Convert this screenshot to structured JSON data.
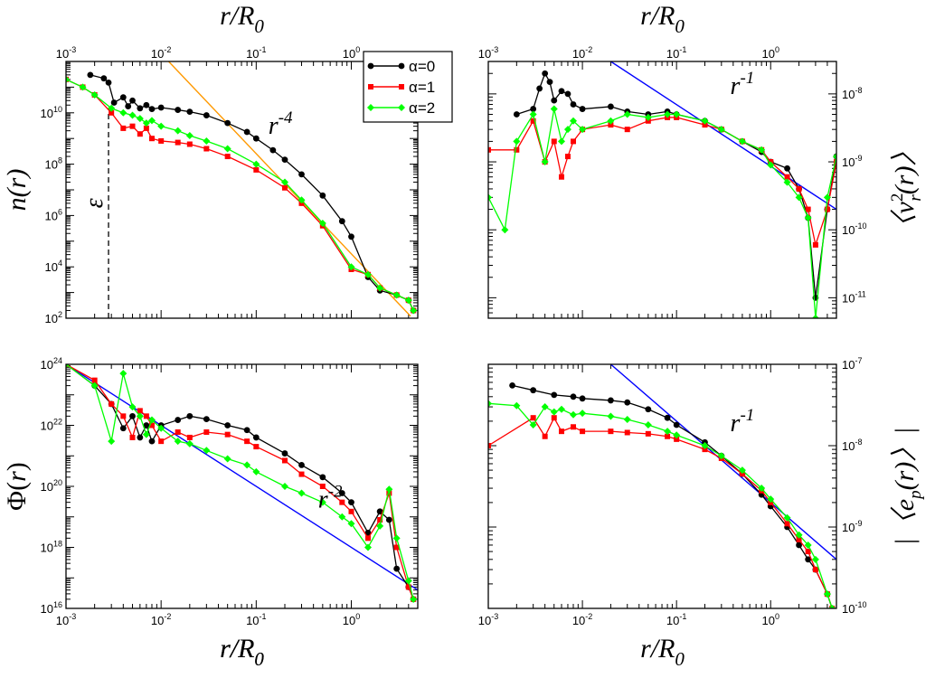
{
  "chart_data": [
    {
      "type": "line",
      "panel": "top-left",
      "xlabel": "r/R0",
      "xlabel_top": "r/R0",
      "ylabel": "n(r)",
      "xscale": "log",
      "yscale": "log",
      "xlim": [
        0.001,
        5
      ],
      "ylim": [
        100,
        1000000000000.0
      ],
      "x_ticks": [
        "10^-3",
        "10^-2",
        "10^-1",
        "10^0"
      ],
      "y_ticks": [
        "10^2",
        "10^4",
        "10^6",
        "10^8",
        "10^10"
      ],
      "legend": {
        "placement": "top-right",
        "entries": [
          "α=0",
          "α=1",
          "α=2"
        ]
      },
      "annotations": [
        {
          "text": "r^-4",
          "x": 0.18,
          "y": 1500000000.0
        },
        {
          "text": "ε",
          "x": 0.0024,
          "y": 3000000.0
        }
      ],
      "reference_lines": [
        {
          "label": "r^-4",
          "color": "#ff9900",
          "points": [
            [
              0.012,
              1000000000000.0
            ],
            [
              4.2,
              120.0
            ]
          ]
        },
        {
          "label": "ε",
          "color": "#000000",
          "dashed": true,
          "points": [
            [
              0.0028,
              100.0
            ],
            [
              0.0028,
              15000000000.0
            ]
          ]
        }
      ],
      "series": [
        {
          "name": "α=0",
          "color": "#000000",
          "marker": "circle",
          "x": [
            0.0018,
            0.0025,
            0.0028,
            0.0032,
            0.004,
            0.0045,
            0.005,
            0.006,
            0.007,
            0.008,
            0.01,
            0.015,
            0.02,
            0.03,
            0.05,
            0.08,
            0.1,
            0.15,
            0.2,
            0.3,
            0.5,
            0.8,
            1.0,
            1.5,
            2.0,
            3.0,
            4.0,
            4.5
          ],
          "y": [
            300000000000.0,
            220000000000.0,
            150000000000.0,
            25000000000.0,
            40000000000.0,
            18000000000.0,
            30000000000.0,
            15000000000.0,
            20000000000.0,
            14000000000.0,
            16000000000.0,
            13000000000.0,
            11000000000.0,
            8000000000.0,
            4000000000.0,
            1800000000.0,
            1000000000.0,
            350000000.0,
            150000000.0,
            40000000.0,
            6000000.0,
            600000.0,
            150000.0,
            4000.0,
            1200.0,
            800.0,
            500.0,
            200.0
          ]
        },
        {
          "name": "α=1",
          "color": "#ff0000",
          "marker": "square",
          "x": [
            0.001,
            0.0015,
            0.002,
            0.003,
            0.004,
            0.005,
            0.006,
            0.007,
            0.008,
            0.01,
            0.015,
            0.02,
            0.03,
            0.05,
            0.1,
            0.2,
            0.3,
            0.5,
            1.0,
            1.5,
            2.0,
            3.0,
            4.0,
            4.5
          ],
          "y": [
            200000000000.0,
            100000000000.0,
            50000000000.0,
            10000000000.0,
            2500000000.0,
            3000000000.0,
            1500000000.0,
            2500000000.0,
            1000000000.0,
            800000000.0,
            700000000.0,
            600000000.0,
            400000000.0,
            200000000.0,
            60000000.0,
            12000000.0,
            3000000.0,
            400000.0,
            8000.0,
            5000.0,
            1500.0,
            800.0,
            500.0,
            200.0
          ]
        },
        {
          "name": "α=2",
          "color": "#00ff00",
          "marker": "diamond",
          "x": [
            0.001,
            0.0015,
            0.002,
            0.003,
            0.004,
            0.005,
            0.006,
            0.007,
            0.008,
            0.01,
            0.015,
            0.02,
            0.03,
            0.05,
            0.1,
            0.2,
            0.3,
            0.5,
            1.0,
            1.5,
            2.0,
            3.0,
            4.0,
            4.5
          ],
          "y": [
            200000000000.0,
            100000000000.0,
            50000000000.0,
            15000000000.0,
            10000000000.0,
            8000000000.0,
            6000000000.0,
            4000000000.0,
            5000000000.0,
            3000000000.0,
            2000000000.0,
            1300000000.0,
            800000000.0,
            400000000.0,
            100000000.0,
            20000000.0,
            4000000.0,
            500000.0,
            10000.0,
            5000.0,
            1500.0,
            800.0,
            500.0,
            200.0
          ]
        }
      ]
    },
    {
      "type": "line",
      "panel": "top-right",
      "xlabel_top": "r/R0",
      "ylabel": "<v_r^2(r)>",
      "xscale": "log",
      "yscale": "log",
      "xlim": [
        0.001,
        5
      ],
      "ylim": [
        5e-12,
        3e-08
      ],
      "x_ticks": [
        "10^-3",
        "10^-2",
        "10^-1",
        "10^0"
      ],
      "y_ticks": [
        "10^-11",
        "10^-10",
        "10^-9",
        "10^-8"
      ],
      "annotations": [
        {
          "text": "r^-1",
          "x": 0.5,
          "y": 1e-08
        }
      ],
      "reference_lines": [
        {
          "label": "r^-1",
          "color": "#0000ff",
          "points": [
            [
              0.02,
              3e-08
            ],
            [
              5,
              2e-10
            ]
          ]
        }
      ],
      "series": [
        {
          "name": "α=0",
          "color": "#000000",
          "marker": "circle",
          "x": [
            0.002,
            0.003,
            0.0035,
            0.004,
            0.0045,
            0.005,
            0.006,
            0.007,
            0.008,
            0.01,
            0.02,
            0.03,
            0.05,
            0.08,
            0.1,
            0.2,
            0.3,
            0.5,
            0.8,
            1.0,
            1.5,
            2.0,
            2.5,
            3.0,
            4.0,
            5.0
          ],
          "y": [
            5e-09,
            6e-09,
            1.2e-08,
            2e-08,
            1.5e-08,
            8e-09,
            1.1e-08,
            1e-08,
            7e-09,
            6e-09,
            6.5e-09,
            5.5e-09,
            5e-09,
            5.5e-09,
            5e-09,
            4e-09,
            3e-09,
            2e-09,
            1.4e-09,
            1e-09,
            8e-10,
            4e-10,
            1.5e-10,
            1e-11,
            2e-10,
            1.2e-09
          ]
        },
        {
          "name": "α=1",
          "color": "#ff0000",
          "marker": "square",
          "x": [
            0.001,
            0.002,
            0.003,
            0.004,
            0.005,
            0.006,
            0.007,
            0.008,
            0.01,
            0.02,
            0.03,
            0.05,
            0.08,
            0.1,
            0.2,
            0.3,
            0.5,
            0.8,
            1.0,
            1.5,
            2.0,
            2.5,
            3.0,
            4.0,
            5.0
          ],
          "y": [
            1.5e-09,
            1.5e-09,
            4e-09,
            1e-09,
            2e-09,
            6e-10,
            1.2e-09,
            2e-09,
            3e-09,
            3.5e-09,
            3e-09,
            4e-09,
            4.5e-09,
            4.5e-09,
            3.5e-09,
            3e-09,
            2e-09,
            1.5e-09,
            1e-09,
            6e-10,
            4e-10,
            2e-10,
            6e-11,
            2e-10,
            1e-09
          ]
        },
        {
          "name": "α=2",
          "color": "#00ff00",
          "marker": "diamond",
          "x": [
            0.001,
            0.0015,
            0.002,
            0.003,
            0.004,
            0.005,
            0.006,
            0.007,
            0.008,
            0.01,
            0.02,
            0.03,
            0.05,
            0.08,
            0.1,
            0.2,
            0.3,
            0.5,
            0.8,
            1.0,
            1.5,
            2.0,
            2.5,
            3.0,
            4.0,
            5.0
          ],
          "y": [
            3e-10,
            1e-10,
            2e-09,
            5e-09,
            1e-09,
            6e-09,
            2e-09,
            3e-09,
            4e-09,
            3e-09,
            4e-09,
            5e-09,
            4.5e-09,
            5e-09,
            5e-09,
            4e-09,
            3e-09,
            2e-09,
            1.5e-09,
            9e-10,
            5e-10,
            3e-10,
            1.5e-10,
            5e-12,
            3e-10,
            1.2e-09
          ]
        }
      ]
    },
    {
      "type": "line",
      "panel": "bottom-left",
      "xlabel": "r/R0",
      "ylabel": "Φ(r)",
      "xscale": "log",
      "yscale": "log",
      "xlim": [
        0.001,
        5
      ],
      "ylim": [
        1e+16,
        1e+24
      ],
      "x_ticks": [
        "10^-3",
        "10^-2",
        "10^-1",
        "10^0"
      ],
      "y_ticks": [
        "10^16",
        "10^18",
        "10^20",
        "10^22",
        "10^24"
      ],
      "annotations": [
        {
          "text": "r^-2",
          "x": 0.6,
          "y": 2e+19
        }
      ],
      "reference_lines": [
        {
          "label": "r^-2",
          "color": "#0000ff",
          "points": [
            [
              0.001,
              1e+24
            ],
            [
              5,
              4e+16
            ]
          ]
        }
      ],
      "series": [
        {
          "name": "α=0",
          "color": "#000000",
          "marker": "circle",
          "x": [
            0.001,
            0.002,
            0.003,
            0.004,
            0.005,
            0.006,
            0.007,
            0.008,
            0.01,
            0.015,
            0.02,
            0.03,
            0.05,
            0.08,
            0.1,
            0.2,
            0.3,
            0.5,
            0.8,
            1.0,
            1.5,
            2.0,
            2.5,
            3.0,
            4.0,
            4.5
          ],
          "y": [
            1e+24,
            2e+23,
            5e+22,
            8e+21,
            2e+22,
            4e+21,
            1e+22,
            3e+21,
            1e+22,
            1.5e+22,
            2e+22,
            1.6e+22,
            1e+22,
            7e+21,
            4e+21,
            1.2e+21,
            5e+20,
            2e+20,
            6e+19,
            3e+19,
            3e+18,
            1.5e+19,
            8e+18,
            2e+17,
            5e+16,
            2e+16
          ]
        },
        {
          "name": "α=1",
          "color": "#ff0000",
          "marker": "square",
          "x": [
            0.001,
            0.002,
            0.003,
            0.004,
            0.005,
            0.006,
            0.007,
            0.008,
            0.01,
            0.015,
            0.02,
            0.03,
            0.05,
            0.08,
            0.1,
            0.2,
            0.3,
            0.5,
            0.8,
            1.0,
            1.5,
            2.0,
            2.5,
            3.0,
            4.0,
            4.5
          ],
          "y": [
            1e+24,
            3e+23,
            5e+22,
            2e+22,
            4e+21,
            3e+22,
            2e+22,
            1e+22,
            3e+21,
            6e+21,
            4e+21,
            6e+21,
            5e+21,
            3e+21,
            2e+21,
            7e+20,
            2.5e+20,
            1e+20,
            3e+19,
            1.5e+19,
            2e+18,
            8e+18,
            6e+19,
            1e+18,
            5e+16,
            2e+16
          ]
        },
        {
          "name": "α=2",
          "color": "#00ff00",
          "marker": "diamond",
          "x": [
            0.001,
            0.002,
            0.003,
            0.004,
            0.005,
            0.006,
            0.007,
            0.008,
            0.01,
            0.015,
            0.02,
            0.03,
            0.05,
            0.08,
            0.1,
            0.2,
            0.3,
            0.5,
            0.8,
            1.0,
            1.5,
            2.0,
            2.5,
            3.0,
            4.0,
            4.5
          ],
          "y": [
            1e+24,
            2e+23,
            3e+21,
            5e+23,
            4e+22,
            2e+22,
            5e+21,
            1.5e+22,
            8e+21,
            3e+21,
            2.5e+21,
            1.5e+21,
            8e+20,
            5e+20,
            3e+20,
            1e+20,
            6e+19,
            3e+19,
            1e+19,
            6e+18,
            1e+18,
            5e+18,
            8e+19,
            2e+18,
            8e+16,
            2e+16
          ]
        }
      ]
    },
    {
      "type": "line",
      "panel": "bottom-right",
      "xlabel": "r/R0",
      "ylabel": "|<e_p(r)>|",
      "xscale": "log",
      "yscale": "log",
      "xlim": [
        0.001,
        5
      ],
      "ylim": [
        1e-10,
        1e-07
      ],
      "x_ticks": [
        "10^-3",
        "10^-2",
        "10^-1",
        "10^0"
      ],
      "y_ticks": [
        "10^-10",
        "10^-9",
        "10^-8",
        "10^-7"
      ],
      "annotations": [
        {
          "text": "r^-1",
          "x": 0.5,
          "y": 1.5e-08
        }
      ],
      "reference_lines": [
        {
          "label": "r^-1",
          "color": "#0000ff",
          "points": [
            [
              0.02,
              1e-07
            ],
            [
              5,
              4e-10
            ]
          ]
        }
      ],
      "series": [
        {
          "name": "α=0",
          "color": "#000000",
          "marker": "circle",
          "x": [
            0.0018,
            0.003,
            0.005,
            0.008,
            0.01,
            0.02,
            0.03,
            0.05,
            0.08,
            0.1,
            0.2,
            0.3,
            0.5,
            0.8,
            1.0,
            1.5,
            2.0,
            2.5,
            3.0,
            4.0,
            4.5
          ],
          "y": [
            5.5e-08,
            4.8e-08,
            4.2e-08,
            4e-08,
            3.8e-08,
            3.6e-08,
            3.4e-08,
            2.8e-08,
            2.2e-08,
            1.8e-08,
            1.1e-08,
            7.5e-09,
            4.5e-09,
            2.5e-09,
            1.8e-09,
            1e-09,
            6e-10,
            4e-10,
            3e-10,
            1.5e-10,
            1e-10
          ]
        },
        {
          "name": "α=1",
          "color": "#ff0000",
          "marker": "square",
          "x": [
            0.001,
            0.003,
            0.004,
            0.005,
            0.006,
            0.008,
            0.01,
            0.02,
            0.03,
            0.05,
            0.08,
            0.1,
            0.2,
            0.3,
            0.5,
            0.8,
            1.0,
            1.5,
            2.0,
            2.5,
            3.0,
            4.0,
            4.5
          ],
          "y": [
            1e-08,
            2.2e-08,
            1.3e-08,
            2.2e-08,
            1.5e-08,
            1.7e-08,
            1.5e-08,
            1.5e-08,
            1.45e-08,
            1.4e-08,
            1.3e-08,
            1.2e-08,
            9e-09,
            7e-09,
            4.5e-09,
            2.8e-09,
            2e-09,
            1.1e-09,
            7e-10,
            5e-10,
            3e-10,
            1.5e-10,
            1e-10
          ]
        },
        {
          "name": "α=2",
          "color": "#00ff00",
          "marker": "diamond",
          "x": [
            0.001,
            0.002,
            0.003,
            0.004,
            0.005,
            0.006,
            0.008,
            0.01,
            0.02,
            0.03,
            0.05,
            0.08,
            0.1,
            0.2,
            0.3,
            0.5,
            0.8,
            1.0,
            1.5,
            2.0,
            2.5,
            3.0,
            4.0,
            4.5
          ],
          "y": [
            3.3e-08,
            3.1e-08,
            1.8e-08,
            3e-08,
            2.6e-08,
            2.8e-08,
            2.4e-08,
            2.5e-08,
            2.3e-08,
            2.1e-08,
            1.8e-08,
            1.5e-08,
            1.35e-08,
            1e-08,
            7.5e-09,
            5e-09,
            3e-09,
            2.2e-09,
            1.3e-09,
            8e-10,
            6e-10,
            4e-10,
            1.5e-10,
            1e-10
          ]
        }
      ]
    }
  ]
}
